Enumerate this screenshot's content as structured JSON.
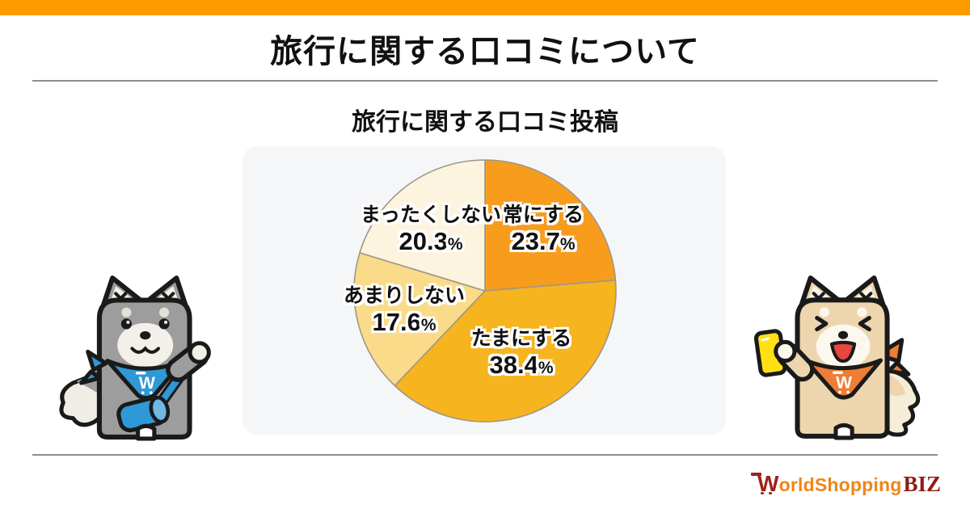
{
  "header": {
    "title": "旅行に関する口コミについて"
  },
  "chart_data": {
    "type": "pie",
    "title": "旅行に関する口コミ投稿",
    "categories": [
      "常にする",
      "たまにする",
      "あまりしない",
      "まったくしない"
    ],
    "values": [
      23.7,
      38.4,
      17.6,
      20.3
    ],
    "unit": "%",
    "colors": [
      "#F89C1E",
      "#F6B41F",
      "#FADB8A",
      "#FDF4DF"
    ],
    "stroke_color": "#9E9689",
    "start_angle": "12-o-clock",
    "direction": "clockwise",
    "legend": "none",
    "labels_on_slices": true
  },
  "mascots": {
    "left": "dog-mascot-gray-waving",
    "right": "dog-mascot-tan-holding-phone",
    "bandana_letter": "W"
  },
  "footer": {
    "logo": {
      "word_initial": "W",
      "word_rest": "orldShopping",
      "suffix": "BIZ"
    }
  },
  "theme": {
    "top_bar": "#FB9B00",
    "card_bg": "#F5F6F8",
    "divider": "#8D8D8D",
    "text": "#111111",
    "mascot_blue": "#2F98D6",
    "mascot_orange": "#EE7D35",
    "logo_orange": "#F08519",
    "logo_maroon": "#9C241C"
  }
}
